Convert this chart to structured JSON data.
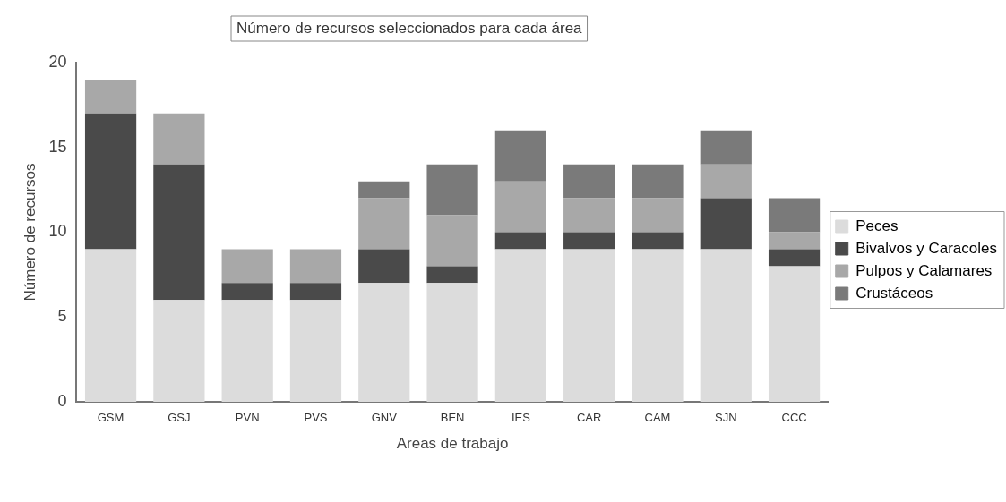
{
  "chart_data": {
    "type": "bar",
    "stacked": true,
    "title": "Número de recursos seleccionados para cada área",
    "xlabel": "Areas de trabajo",
    "ylabel": "Número de recursos",
    "categories": [
      "GSM",
      "GSJ",
      "PVN",
      "PVS",
      "GNV",
      "BEN",
      "IES",
      "CAR",
      "CAM",
      "SJN",
      "CCC"
    ],
    "series": [
      {
        "name": "Peces",
        "color": "#dcdcdc",
        "values": [
          9,
          6,
          6,
          6,
          7,
          7,
          9,
          9,
          9,
          9,
          8
        ]
      },
      {
        "name": "Bivalvos y Caracoles",
        "color": "#4a4a4a",
        "values": [
          8,
          8,
          1,
          1,
          2,
          1,
          1,
          1,
          1,
          3,
          1
        ]
      },
      {
        "name": "Pulpos y Calamares",
        "color": "#a8a8a8",
        "values": [
          2,
          3,
          2,
          2,
          3,
          3,
          3,
          2,
          2,
          2,
          1
        ]
      },
      {
        "name": "Crustáceos",
        "color": "#7a7a7a",
        "values": [
          0,
          0,
          0,
          0,
          1,
          3,
          3,
          2,
          2,
          2,
          2
        ]
      }
    ],
    "ylim": [
      0,
      20
    ],
    "yticks": [
      0,
      5,
      10,
      15,
      20
    ],
    "grid": false,
    "legend": "right"
  }
}
